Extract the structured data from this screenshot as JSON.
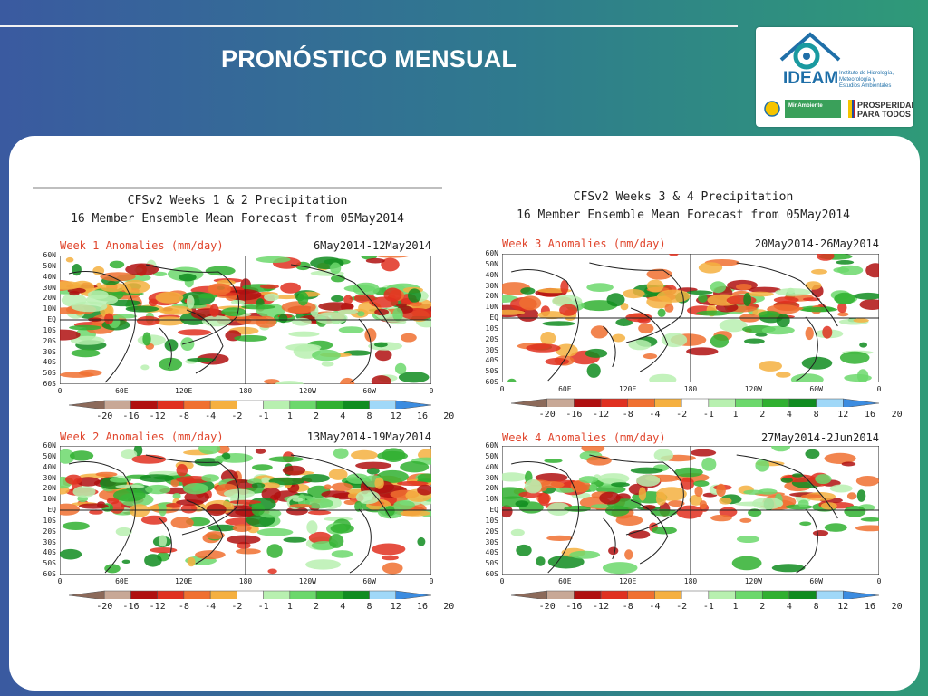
{
  "slide": {
    "title": "PRONÓSTICO MENSUAL"
  },
  "logo": {
    "name": "IDEAM",
    "subtitle_lines": [
      "Instituto de Hidrología,",
      "Meteorología y",
      "Estudios Ambientales"
    ],
    "ministry": "MinAmbiente",
    "slogan_lines": [
      "PROSPERIDAD",
      "PARA TODOS"
    ]
  },
  "figures": [
    {
      "title_line1": "CFSv2 Weeks 1 & 2 Precipitation",
      "title_line2": "16 Member Ensemble Mean Forecast from 05May2014",
      "maps": [
        {
          "label": "Week 1 Anomalies (mm/day)",
          "dates": "6May2014-12May2014"
        },
        {
          "label": "Week 2 Anomalies (mm/day)",
          "dates": "13May2014-19May2014"
        }
      ]
    },
    {
      "title_line1": "CFSv2 Weeks 3 & 4 Precipitation",
      "title_line2": "16 Member Ensemble Mean Forecast from 05May2014",
      "maps": [
        {
          "label": "Week 3 Anomalies (mm/day)",
          "dates": "20May2014-26May2014"
        },
        {
          "label": "Week 4 Anomalies (mm/day)",
          "dates": "27May2014-2Jun2014"
        }
      ]
    }
  ],
  "lat_labels": [
    "60N",
    "50N",
    "40N",
    "30N",
    "20N",
    "10N",
    "EQ",
    "10S",
    "20S",
    "30S",
    "40S",
    "50S",
    "60S"
  ],
  "lon_labels": [
    "0",
    "60E",
    "120E",
    "180",
    "120W",
    "60W",
    "0"
  ],
  "colorbar": {
    "ticks": [
      "-20",
      "-16",
      "-12",
      "-8",
      "-4",
      "-2",
      "-1",
      "1",
      "2",
      "4",
      "8",
      "12",
      "16",
      "20"
    ],
    "colors": [
      "#8c6a5a",
      "#c8a896",
      "#b01010",
      "#e03020",
      "#f07030",
      "#f5b040",
      "#ffffff",
      "#b8f0b0",
      "#6cd86c",
      "#30b030",
      "#108c20",
      "#a0d8f8",
      "#3c8ce0"
    ]
  }
}
